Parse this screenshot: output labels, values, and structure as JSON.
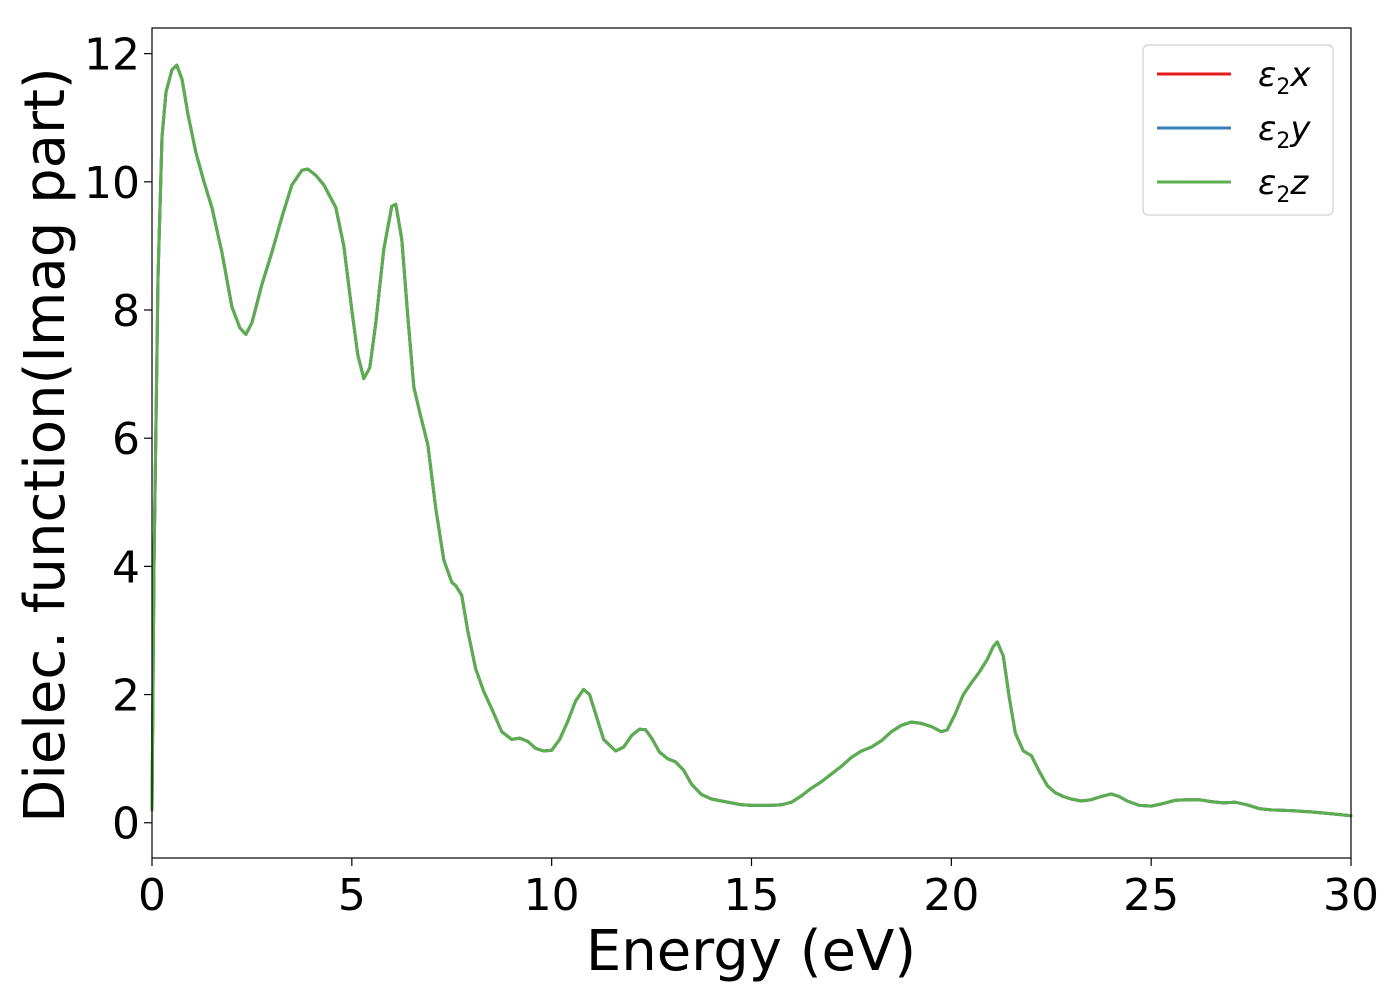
{
  "chart_data": {
    "type": "line",
    "title": "",
    "xlabel": "Energy (eV)",
    "ylabel": "Dielec. function(Imag part)",
    "xlim": [
      0,
      30
    ],
    "ylim": [
      -0.55,
      12.4
    ],
    "xticks": [
      0,
      5,
      10,
      15,
      20,
      25,
      30
    ],
    "yticks": [
      0,
      2,
      4,
      6,
      8,
      10,
      12
    ],
    "grid": false,
    "legend_position": "top-right",
    "series": [
      {
        "name": "ε2x",
        "legend_base": "ε",
        "legend_sub": "2",
        "legend_suffix": "x",
        "color": "#e41a1c",
        "x": [
          0,
          0.05,
          0.15,
          0.25,
          0.35,
          0.5,
          0.62,
          0.75,
          0.9,
          1.1,
          1.3,
          1.5,
          1.75,
          2.0,
          2.2,
          2.35,
          2.5,
          2.75,
          3.0,
          3.25,
          3.5,
          3.75,
          3.9,
          4.1,
          4.3,
          4.6,
          4.8,
          5.0,
          5.15,
          5.3,
          5.45,
          5.6,
          5.8,
          6.0,
          6.1,
          6.25,
          6.4,
          6.55,
          6.7,
          6.9,
          7.1,
          7.3,
          7.5,
          7.6,
          7.75,
          7.9,
          8.1,
          8.3,
          8.5,
          8.75,
          9.0,
          9.2,
          9.4,
          9.6,
          9.8,
          10.0,
          10.2,
          10.4,
          10.6,
          10.8,
          10.95,
          11.1,
          11.3,
          11.6,
          11.8,
          12.0,
          12.2,
          12.35,
          12.5,
          12.7,
          12.9,
          13.1,
          13.3,
          13.5,
          13.75,
          14.0,
          14.25,
          14.5,
          14.75,
          15.0,
          15.25,
          15.5,
          15.75,
          16.0,
          16.25,
          16.5,
          16.75,
          17.0,
          17.25,
          17.5,
          17.75,
          18.0,
          18.25,
          18.5,
          18.75,
          19.0,
          19.25,
          19.5,
          19.75,
          19.9,
          20.1,
          20.3,
          20.5,
          20.7,
          20.9,
          21.05,
          21.15,
          21.3,
          21.45,
          21.6,
          21.8,
          22.0,
          22.2,
          22.4,
          22.6,
          22.8,
          23.0,
          23.25,
          23.5,
          23.75,
          24.0,
          24.2,
          24.4,
          24.7,
          25.0,
          25.3,
          25.6,
          25.9,
          26.2,
          26.5,
          26.8,
          27.1,
          27.4,
          27.7,
          28.0,
          28.5,
          29.0,
          29.5,
          30.0
        ],
        "y": [
          0.2,
          4.0,
          8.5,
          10.7,
          11.4,
          11.75,
          11.82,
          11.6,
          11.05,
          10.45,
          10.0,
          9.6,
          8.9,
          8.05,
          7.72,
          7.62,
          7.8,
          8.4,
          8.9,
          9.45,
          9.95,
          10.18,
          10.2,
          10.1,
          9.95,
          9.6,
          9.0,
          8.0,
          7.3,
          6.93,
          7.1,
          7.8,
          8.95,
          9.62,
          9.65,
          9.1,
          7.9,
          6.8,
          6.4,
          5.9,
          4.9,
          4.1,
          3.75,
          3.7,
          3.55,
          3.0,
          2.4,
          2.05,
          1.78,
          1.42,
          1.3,
          1.32,
          1.27,
          1.16,
          1.12,
          1.13,
          1.3,
          1.58,
          1.9,
          2.08,
          2.0,
          1.7,
          1.3,
          1.12,
          1.18,
          1.36,
          1.46,
          1.45,
          1.32,
          1.1,
          1.0,
          0.95,
          0.82,
          0.6,
          0.44,
          0.37,
          0.34,
          0.31,
          0.28,
          0.27,
          0.27,
          0.27,
          0.28,
          0.32,
          0.42,
          0.54,
          0.64,
          0.76,
          0.88,
          1.02,
          1.12,
          1.18,
          1.28,
          1.42,
          1.52,
          1.57,
          1.55,
          1.5,
          1.42,
          1.45,
          1.7,
          2.0,
          2.18,
          2.35,
          2.55,
          2.75,
          2.82,
          2.6,
          1.95,
          1.4,
          1.12,
          1.05,
          0.8,
          0.58,
          0.47,
          0.41,
          0.37,
          0.34,
          0.36,
          0.41,
          0.45,
          0.41,
          0.34,
          0.27,
          0.26,
          0.3,
          0.35,
          0.36,
          0.36,
          0.33,
          0.31,
          0.32,
          0.28,
          0.22,
          0.2,
          0.19,
          0.17,
          0.14,
          0.11
        ]
      },
      {
        "name": "ε2y",
        "legend_base": "ε",
        "legend_sub": "2",
        "legend_suffix": "y",
        "color": "#377eb8",
        "same_as": 0
      },
      {
        "name": "ε2z",
        "legend_base": "ε",
        "legend_sub": "2",
        "legend_suffix": "z",
        "color": "#5aae4e",
        "same_as": 0
      }
    ]
  }
}
